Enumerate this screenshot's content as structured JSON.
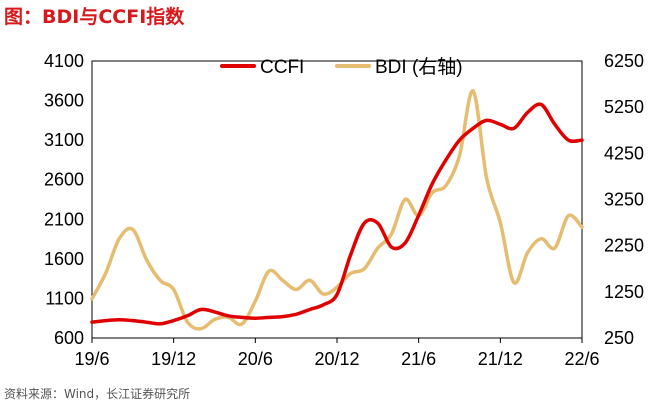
{
  "title": "图：BDI与CCFI指数",
  "source": "资料来源：Wind，长江证券研究所",
  "chart_data": {
    "type": "line",
    "title": "图：BDI与CCFI指数",
    "x_ticks": [
      "19/6",
      "19/12",
      "20/6",
      "20/12",
      "21/6",
      "21/12",
      "22/6"
    ],
    "x_start": "2019-06",
    "x_end": "2022-06",
    "y_left": {
      "min": 600,
      "max": 4100,
      "ticks": [
        4100,
        3600,
        3100,
        2600,
        2100,
        1600,
        1100,
        600
      ]
    },
    "y_right": {
      "min": 250,
      "max": 6250,
      "ticks": [
        6250,
        5250,
        4250,
        3250,
        2250,
        1250,
        250
      ]
    },
    "legend_position": "top",
    "series": [
      {
        "name": "CCFI",
        "axis": "left",
        "color": "#e00000",
        "x": [
          "2019-06",
          "2019-07",
          "2019-08",
          "2019-09",
          "2019-10",
          "2019-11",
          "2019-12",
          "2020-01",
          "2020-02",
          "2020-03",
          "2020-04",
          "2020-05",
          "2020-06",
          "2020-07",
          "2020-08",
          "2020-09",
          "2020-10",
          "2020-11",
          "2020-12",
          "2021-01",
          "2021-02",
          "2021-03",
          "2021-04",
          "2021-05",
          "2021-06",
          "2021-07",
          "2021-08",
          "2021-09",
          "2021-10",
          "2021-11",
          "2021-12",
          "2022-01",
          "2022-02",
          "2022-03",
          "2022-04",
          "2022-05",
          "2022-06"
        ],
        "values": [
          800,
          820,
          830,
          820,
          800,
          780,
          820,
          880,
          960,
          930,
          880,
          860,
          850,
          860,
          870,
          900,
          960,
          1020,
          1150,
          1650,
          2050,
          2050,
          1750,
          1800,
          2150,
          2550,
          2850,
          3100,
          3250,
          3350,
          3300,
          3250,
          3450,
          3550,
          3300,
          3100,
          3100
        ]
      },
      {
        "name": "BDI (右轴)",
        "axis": "right",
        "color": "#e6bc70",
        "x": [
          "2019-06",
          "2019-07",
          "2019-08",
          "2019-09",
          "2019-10",
          "2019-11",
          "2019-12",
          "2020-01",
          "2020-02",
          "2020-03",
          "2020-04",
          "2020-05",
          "2020-06",
          "2020-07",
          "2020-08",
          "2020-09",
          "2020-10",
          "2020-11",
          "2020-12",
          "2021-01",
          "2021-02",
          "2021-03",
          "2021-04",
          "2021-05",
          "2021-06",
          "2021-07",
          "2021-08",
          "2021-09",
          "2021-10",
          "2021-11",
          "2021-12",
          "2022-01",
          "2022-02",
          "2022-03",
          "2022-04",
          "2022-05",
          "2022-06"
        ],
        "values": [
          1100,
          1650,
          2400,
          2600,
          1950,
          1500,
          1300,
          600,
          450,
          650,
          700,
          550,
          1050,
          1700,
          1500,
          1300,
          1500,
          1200,
          1350,
          1650,
          1750,
          2200,
          2500,
          3250,
          2900,
          3400,
          3550,
          4200,
          5600,
          3700,
          2750,
          1450,
          2100,
          2400,
          2200,
          2900,
          2650
        ]
      }
    ]
  }
}
